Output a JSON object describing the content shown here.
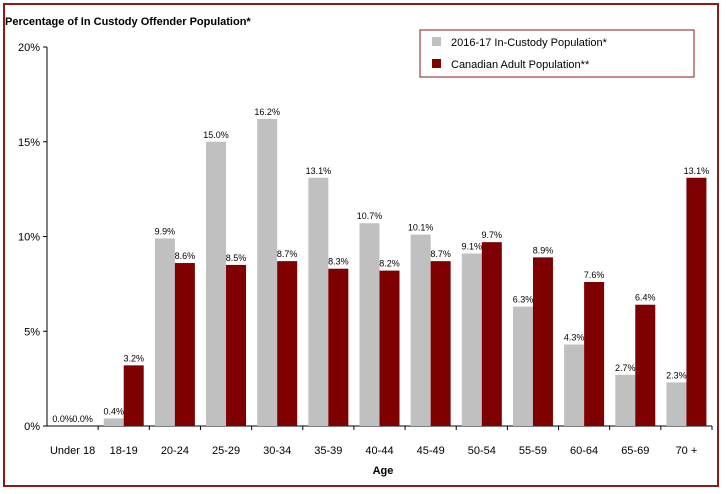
{
  "chart_data": {
    "type": "bar",
    "title": "Percentage of In Custody Offender Population*",
    "xlabel": "Age",
    "ylabel": "",
    "ylim": [
      0,
      20
    ],
    "yticks": [
      "0%",
      "5%",
      "10%",
      "15%",
      "20%"
    ],
    "legend_position": "top-right",
    "categories": [
      "Under 18",
      "18-19",
      "20-24",
      "25-29",
      "30-34",
      "35-39",
      "40-44",
      "45-49",
      "50-54",
      "55-59",
      "60-64",
      "65-69",
      "70 +"
    ],
    "series": [
      {
        "name": "2016-17 In-Custody Population*",
        "color": "#c0c0c0",
        "values": [
          0.0,
          0.4,
          9.9,
          15.0,
          16.2,
          13.1,
          10.7,
          10.1,
          9.1,
          6.3,
          4.3,
          2.7,
          2.3
        ],
        "labels": [
          "0.0%",
          "0.4%",
          "9.9%",
          "15.0%",
          "16.2%",
          "13.1%",
          "10.7%",
          "10.1%",
          "9.1%",
          "6.3%",
          "4.3%",
          "2.7%",
          "2.3%"
        ]
      },
      {
        "name": "Canadian Adult Population**",
        "color": "#7f0000",
        "values": [
          0.0,
          3.2,
          8.6,
          8.5,
          8.7,
          8.3,
          8.2,
          8.7,
          9.7,
          8.9,
          7.6,
          6.4,
          13.1
        ],
        "labels": [
          "0.0%",
          "3.2%",
          "8.6%",
          "8.5%",
          "8.7%",
          "8.3%",
          "8.2%",
          "8.7%",
          "9.7%",
          "8.9%",
          "7.6%",
          "6.4%",
          "13.1%"
        ]
      }
    ]
  }
}
